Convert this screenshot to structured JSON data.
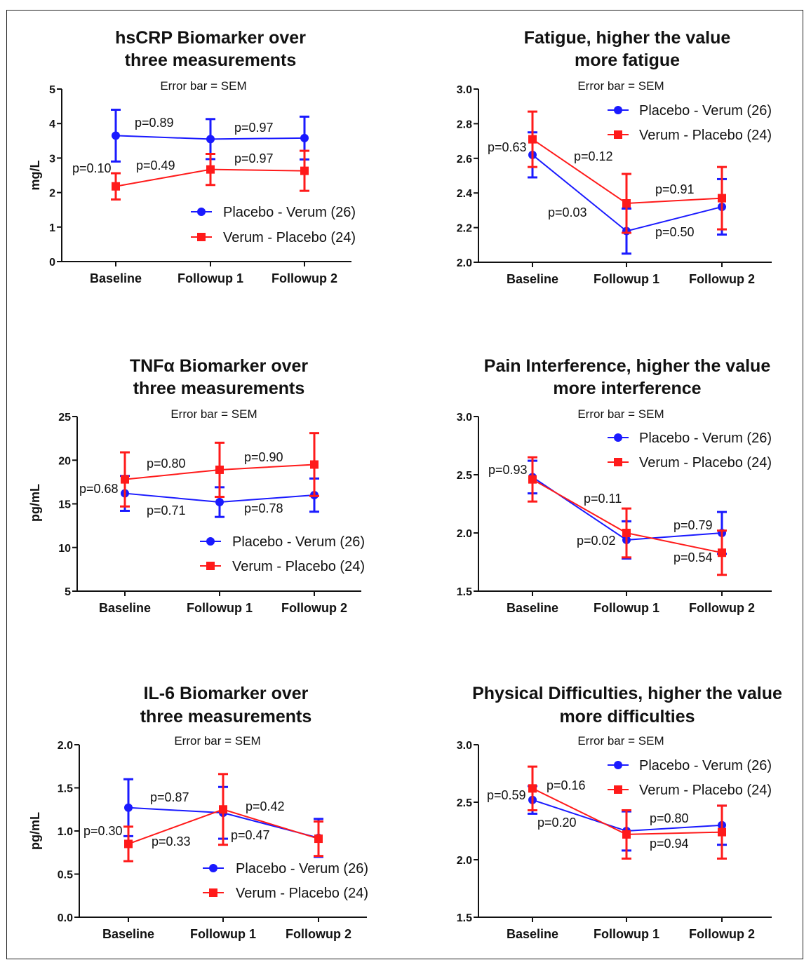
{
  "chart_data": [
    {
      "type": "line",
      "title": [
        "hsCRP Biomarker over",
        "three measurements"
      ],
      "subtitle": "Error bar = SEM",
      "ylabel": "mg/L",
      "categories": [
        "Baseline",
        "Followup 1",
        "Followup 2"
      ],
      "ylim": [
        0,
        5
      ],
      "yticks": [
        "0",
        "1",
        "2",
        "3",
        "4",
        "5"
      ],
      "legend_position": "bottom-right",
      "series": [
        {
          "name": "Placebo - Verum (26)",
          "color": "#1a1aff",
          "marker": "circle",
          "values": [
            3.65,
            3.55,
            3.58
          ],
          "sem": [
            0.75,
            0.58,
            0.62
          ]
        },
        {
          "name": "Verum - Placebo (24)",
          "color": "#ff1a1a",
          "marker": "square",
          "values": [
            2.18,
            2.67,
            2.63
          ],
          "sem": [
            0.38,
            0.45,
            0.58
          ]
        }
      ],
      "annotations": [
        "p=0.10",
        "p=0.89",
        "p=0.97",
        "p=0.49",
        "p=0.97"
      ]
    },
    {
      "type": "line",
      "title": [
        "Fatigue, higher the value",
        "more fatigue"
      ],
      "subtitle": "Error bar = SEM",
      "ylabel": "",
      "categories": [
        "Baseline",
        "Followup 1",
        "Followup 2"
      ],
      "ylim": [
        2.0,
        3.0
      ],
      "yticks": [
        "2.0",
        "2.2",
        "2.4",
        "2.6",
        "2.8",
        "3.0"
      ],
      "legend_position": "top-right",
      "series": [
        {
          "name": "Placebo - Verum (26)",
          "color": "#1a1aff",
          "marker": "circle",
          "values": [
            2.62,
            2.18,
            2.32
          ],
          "sem": [
            0.13,
            0.13,
            0.16
          ]
        },
        {
          "name": "Verum - Placebo (24)",
          "color": "#ff1a1a",
          "marker": "square",
          "values": [
            2.71,
            2.34,
            2.37
          ],
          "sem": [
            0.16,
            0.17,
            0.18
          ]
        }
      ],
      "annotations": [
        "p=0.63",
        "p=0.12",
        "p=0.03",
        "p=0.91",
        "p=0.50"
      ]
    },
    {
      "type": "line",
      "title": [
        "TNFα Biomarker over",
        "three measurements"
      ],
      "subtitle": "Error bar = SEM",
      "ylabel": "pg/mL",
      "categories": [
        "Baseline",
        "Followup 1",
        "Followup 2"
      ],
      "ylim": [
        5,
        25
      ],
      "yticks": [
        "5",
        "10",
        "15",
        "20",
        "25"
      ],
      "legend_position": "bottom-right",
      "series": [
        {
          "name": "Placebo - Verum (26)",
          "color": "#1a1aff",
          "marker": "circle",
          "values": [
            16.2,
            15.2,
            16.0
          ],
          "sem": [
            2.0,
            1.7,
            1.9
          ]
        },
        {
          "name": "Verum - Placebo (24)",
          "color": "#ff1a1a",
          "marker": "square",
          "values": [
            17.8,
            18.9,
            19.5
          ],
          "sem": [
            3.1,
            3.1,
            3.6
          ]
        }
      ],
      "annotations": [
        "p=0.68",
        "p=0.80",
        "p=0.90",
        "p=0.71",
        "p=0.78"
      ]
    },
    {
      "type": "line",
      "title": [
        "Pain Interference, higher the value",
        "more interference"
      ],
      "subtitle": "Error bar = SEM",
      "ylabel": "",
      "categories": [
        "Baseline",
        "Followup 1",
        "Followup 2"
      ],
      "ylim": [
        1.5,
        3.0
      ],
      "yticks": [
        "1.5",
        "2.0",
        "2.5",
        "3.0"
      ],
      "legend_position": "top-right",
      "series": [
        {
          "name": "Placebo - Verum (26)",
          "color": "#1a1aff",
          "marker": "circle",
          "values": [
            2.48,
            1.94,
            2.0
          ],
          "sem": [
            0.14,
            0.16,
            0.18
          ]
        },
        {
          "name": "Verum - Placebo (24)",
          "color": "#ff1a1a",
          "marker": "square",
          "values": [
            2.46,
            2.0,
            1.83
          ],
          "sem": [
            0.19,
            0.21,
            0.19
          ]
        }
      ],
      "annotations": [
        "p=0.93",
        "p=0.11",
        "p=0.02",
        "p=0.79",
        "p=0.54"
      ]
    },
    {
      "type": "line",
      "title": [
        "IL-6 Biomarker over",
        "three measurements"
      ],
      "subtitle": "Error bar = SEM",
      "ylabel": "pg/mL",
      "categories": [
        "Baseline",
        "Followup 1",
        "Followup 2"
      ],
      "ylim": [
        0.0,
        2.0
      ],
      "yticks": [
        "0.0",
        "0.5",
        "1.0",
        "1.5",
        "2.0"
      ],
      "legend_position": "bottom-right",
      "series": [
        {
          "name": "Placebo - Verum (26)",
          "color": "#1a1aff",
          "marker": "circle",
          "values": [
            1.27,
            1.21,
            0.92
          ],
          "sem": [
            0.33,
            0.3,
            0.22
          ]
        },
        {
          "name": "Verum - Placebo (24)",
          "color": "#ff1a1a",
          "marker": "square",
          "values": [
            0.85,
            1.25,
            0.91
          ],
          "sem": [
            0.2,
            0.41,
            0.2
          ]
        }
      ],
      "annotations": [
        "p=0.30",
        "p=0.87",
        "p=0.33",
        "p=0.42",
        "p=0.47"
      ]
    },
    {
      "type": "line",
      "title": [
        "Physical Difficulties, higher the value",
        "more difficulties"
      ],
      "subtitle": "Error bar = SEM",
      "ylabel": "",
      "categories": [
        "Baseline",
        "Followup 1",
        "Followup 2"
      ],
      "ylim": [
        1.5,
        3.0
      ],
      "yticks": [
        "1.5",
        "2.0",
        "2.5",
        "3.0"
      ],
      "legend_position": "top-right",
      "series": [
        {
          "name": "Placebo - Verum (26)",
          "color": "#1a1aff",
          "marker": "circle",
          "values": [
            2.52,
            2.25,
            2.3
          ],
          "sem": [
            0.12,
            0.17,
            0.17
          ]
        },
        {
          "name": "Verum - Placebo (24)",
          "color": "#ff1a1a",
          "marker": "square",
          "values": [
            2.62,
            2.22,
            2.24
          ],
          "sem": [
            0.19,
            0.21,
            0.23
          ]
        }
      ],
      "annotations": [
        "p=0.59",
        "p=0.16",
        "p=0.20",
        "p=0.80",
        "p=0.94"
      ]
    }
  ]
}
